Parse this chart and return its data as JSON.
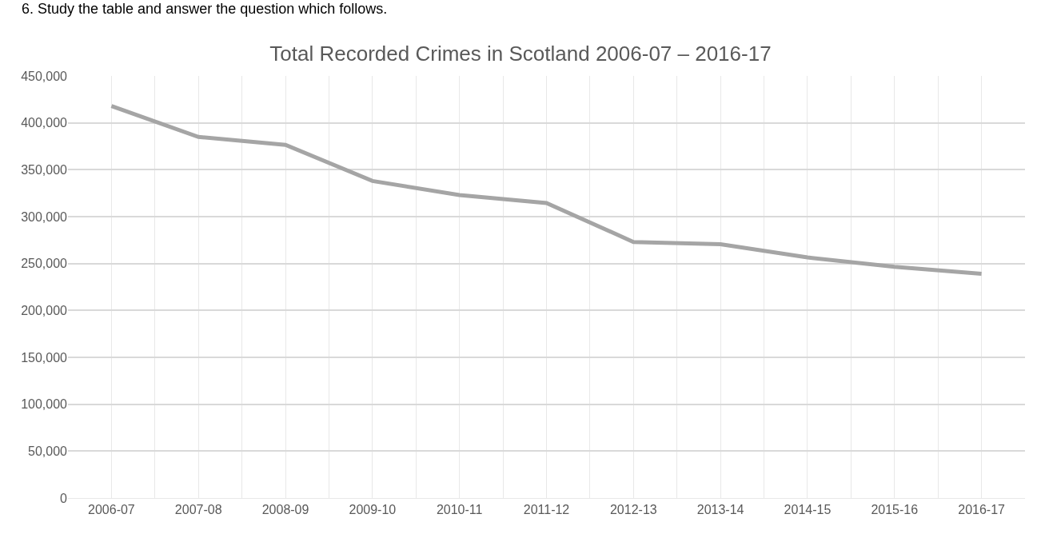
{
  "chart_data": {
    "type": "line",
    "title": "Total Recorded Crimes in Scotland 2006-07 – 2016-17",
    "annotations": [
      "6. Study the table and answer the question which follows."
    ],
    "categories": [
      "2006-07",
      "2007-08",
      "2008-09",
      "2009-10",
      "2010-11",
      "2011-12",
      "2012-13",
      "2013-14",
      "2014-15",
      "2015-16",
      "2016-17"
    ],
    "series": [
      {
        "color": "#a5a5a5",
        "values": [
          418000,
          385000,
          376500,
          338000,
          323000,
          314500,
          273000,
          270500,
          256500,
          246500,
          239000
        ]
      }
    ],
    "ylim": [
      0,
      450000
    ],
    "yticks": [
      {
        "value": 0,
        "label": "0"
      },
      {
        "value": 50000,
        "label": "50,000"
      },
      {
        "value": 100000,
        "label": "100,000"
      },
      {
        "value": 150000,
        "label": "150,000"
      },
      {
        "value": 200000,
        "label": "200,000"
      },
      {
        "value": 250000,
        "label": "250,000"
      },
      {
        "value": 300000,
        "label": "300,000"
      },
      {
        "value": 350000,
        "label": "350,000"
      },
      {
        "value": 400000,
        "label": "400,000"
      },
      {
        "value": 450000,
        "label": "450,000"
      }
    ],
    "grid": true,
    "legend": false,
    "marker": "none",
    "line_style": "solid"
  }
}
